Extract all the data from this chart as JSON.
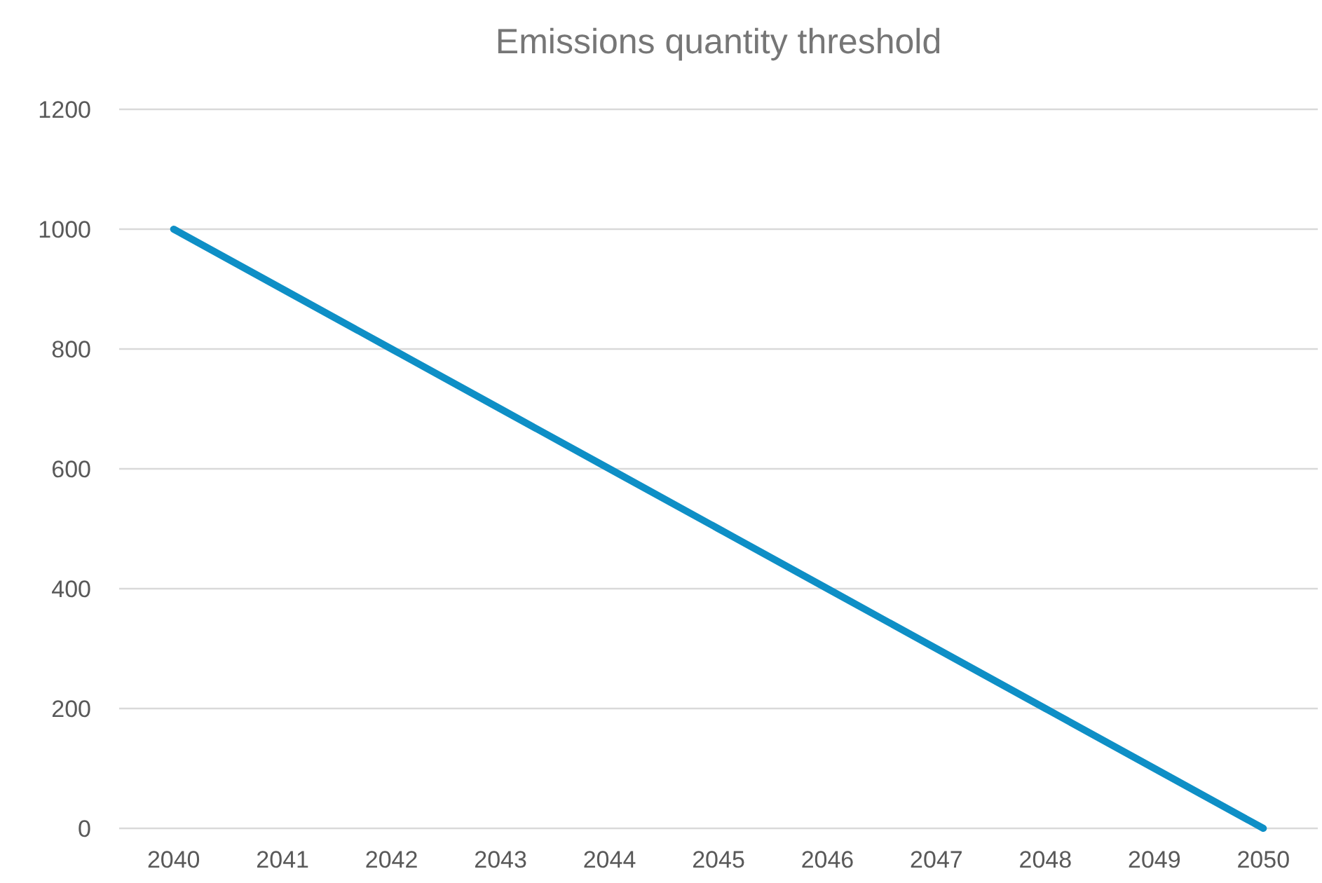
{
  "chart_data": {
    "type": "line",
    "title": "Emissions quantity threshold",
    "categories": [
      "2040",
      "2041",
      "2042",
      "2043",
      "2044",
      "2045",
      "2046",
      "2047",
      "2048",
      "2049",
      "2050"
    ],
    "series": [
      {
        "color": "#0e8fc6",
        "values": [
          1000,
          900,
          800,
          700,
          600,
          500,
          400,
          300,
          200,
          100,
          0
        ]
      }
    ],
    "ylim": [
      0,
      1200
    ],
    "yticks": [
      0,
      200,
      400,
      600,
      800,
      1000,
      1200
    ],
    "grid": "y",
    "marker": "none",
    "line_style": "solid"
  }
}
